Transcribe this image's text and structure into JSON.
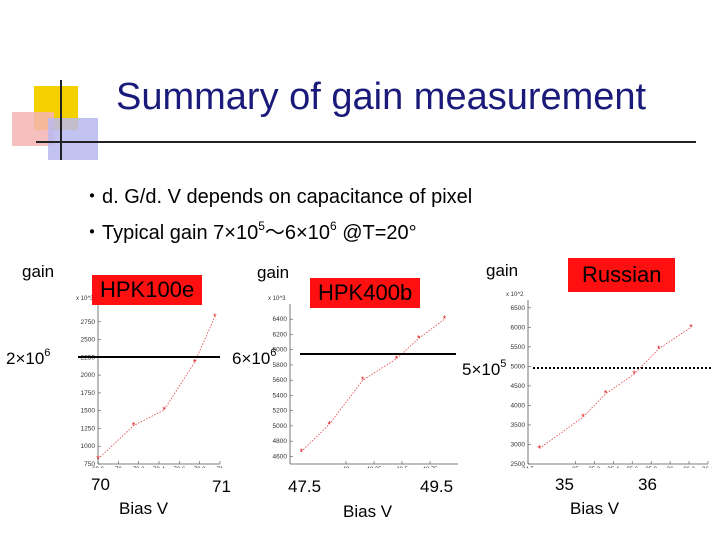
{
  "title": "Summary of gain measurement",
  "bullets": [
    {
      "text": "・d. G/d. V depends on capacitance of pixel"
    },
    {
      "pre": "・Typical gain 7×10",
      "e1": "5",
      "mid": "〜6×10",
      "e2": "6",
      "post": "  @T=20°"
    }
  ],
  "chips": {
    "hpk100e": "HPK100e",
    "hpk400b": "HPK400b",
    "russian": "Russian"
  },
  "axis_labels": {
    "gain": "gain",
    "bias": "Bias V"
  },
  "refs": [
    {
      "base": "2×10",
      "exp": "6"
    },
    {
      "base": "6×10",
      "exp": "6"
    },
    {
      "base": "5×10",
      "exp": "5"
    }
  ],
  "bias_ticks": [
    "70",
    "71",
    "47.5",
    "49.5",
    "35",
    "36"
  ],
  "chart_data": [
    {
      "type": "scatter",
      "name": "HPK100e",
      "multiplier": "x 10^3",
      "xlim": [
        69.8,
        71.0
      ],
      "ylim": [
        750,
        3000
      ],
      "yticks": [
        750,
        1000,
        1250,
        1500,
        1750,
        2000,
        2250,
        2500,
        2750
      ],
      "xticks": [
        69.8,
        70,
        70.2,
        70.4,
        70.6,
        70.8,
        71
      ],
      "x": [
        69.8,
        70.15,
        70.45,
        70.75,
        70.95
      ],
      "y": [
        820,
        1290,
        1510,
        2180,
        2820
      ]
    },
    {
      "type": "scatter",
      "name": "HPK400b",
      "multiplier": "x 10^3",
      "xlim": [
        47.5,
        49.0
      ],
      "ylim": [
        4500,
        6600
      ],
      "yticks": [
        4600,
        4800,
        5000,
        5200,
        5400,
        5600,
        5800,
        6000,
        6200,
        6400
      ],
      "xticks": [
        48,
        48.25,
        48.5,
        48.75
      ],
      "x": [
        47.6,
        47.85,
        48.15,
        48.45,
        48.65,
        48.88
      ],
      "y": [
        4660,
        5020,
        5600,
        5880,
        6150,
        6400
      ]
    },
    {
      "type": "scatter",
      "name": "Russian",
      "multiplier": "x 10^2",
      "xlim": [
        34.5,
        36.4
      ],
      "ylim": [
        2500,
        6700
      ],
      "yticks": [
        2500,
        3000,
        3500,
        4000,
        4500,
        5000,
        5500,
        6000,
        6500
      ],
      "xticks": [
        34.5,
        35,
        35.2,
        35.4,
        35.6,
        35.8,
        36,
        36.2,
        36.4
      ],
      "x": [
        34.62,
        35.08,
        35.32,
        35.62,
        35.88,
        36.22
      ],
      "y": [
        2900,
        3700,
        4300,
        4800,
        5450,
        6000
      ]
    }
  ]
}
